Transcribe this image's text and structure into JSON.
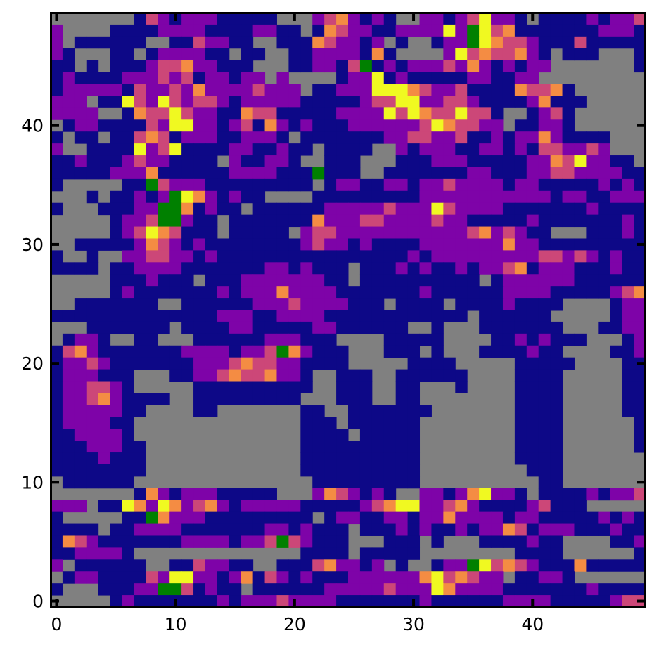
{
  "chart_data": {
    "type": "heatmap",
    "title": "",
    "xlabel": "",
    "ylabel": "",
    "xlim": [
      -0.5,
      49.5
    ],
    "ylim": [
      -0.5,
      49.5
    ],
    "x_ticks": [
      0,
      10,
      20,
      30,
      40
    ],
    "x_tick_labels": [
      "0",
      "10",
      "20",
      "30",
      "40"
    ],
    "y_ticks": [
      0,
      10,
      20,
      30,
      40
    ],
    "y_tick_labels": [
      "0",
      "10",
      "20",
      "30",
      "40"
    ],
    "grid": false,
    "colormap": "plasma",
    "background_color": "#808080",
    "highlight_color": "#008000",
    "value_range": [
      0,
      1
    ],
    "legend": [
      {
        "value": "0",
        "meaning": "gray cell",
        "color": "#808080"
      },
      {
        "value": "G",
        "meaning": "green cell",
        "color": "#008000"
      }
    ],
    "rows_top_to_bottom": [
      "00000001321222111110002332121002212342210111121223",
      "20000111122221111221101332211222242G43311111112221",
      "20111111001132211001113322120100122G43332111311111",
      "21000110122221101100112222131000024333332101110001",
      "11010111233322111000112213G12122232321212200000001",
      "12111122232312212202000012241211111221122000000000",
      "12222213223232222322201122244433223111133331000000",
      "22201143243233212222211111233442233211112311100000",
      "22220013334322113331111122224343334331001231000000",
      "01221111324422123132121112222223433322011221000000",
      "10110113331222112221011111112233223112122321111000",
      "20011114234111122112110111100212221122121332232000",
      "11211123221111021122100111000111222111112233422110",
      "1111122231111112222111G111001111111221112233222211",
      "10000011G32221111111110122112212232222122111112121",
      "0001011212G4321211000011111111122222222222122112222",
      "100011122GG3121101111112222232224322221111111211112",
      "000001223GG2110111111132223322223221111121111111212",
      "000001234331110111110233222222222223323211000111212",
      "001111123321211111111232212111122222223221111111111",
      "100100223322121111111111111111212222222223323212111",
      "111101122221111111221211101112121121223312221112111",
      "000001112111011122222221101111111111012222221111111",
      "000001211111112122232222111111121111112222111112331",
      "001111111001111112223222211101111011112111100001221",
      "111111111111112221122221111111111110111111000001221",
      "000111111101111221111122111111001000111111100011221",
      "0122100110001111112221110000111110000112121110001221",
      "1332111111122221223G3211100011101000111121100001121",
      "1223211111112223333221111000001111000001111100001121",
      "1222111000112233333221001110011111100001111000001121",
      "1223321000001111111111001110011000100001111000001121",
      "1223321111001111111110001110011000000001111000001121",
      "1222221100001100000001100111111100000001111000001121",
      "1222211000000000000001110111111000000001111000000111",
      "1122221000000000000001111011111000000001111000000111",
      "1112221100000000000001111111111000000001111000000111",
      "1111211100000000000001111111111000000001111000000011",
      "1111111100000000000001111111111000000000111000000011",
      "0111111000000000000000111111111000000000011000000011"
    ]
  }
}
